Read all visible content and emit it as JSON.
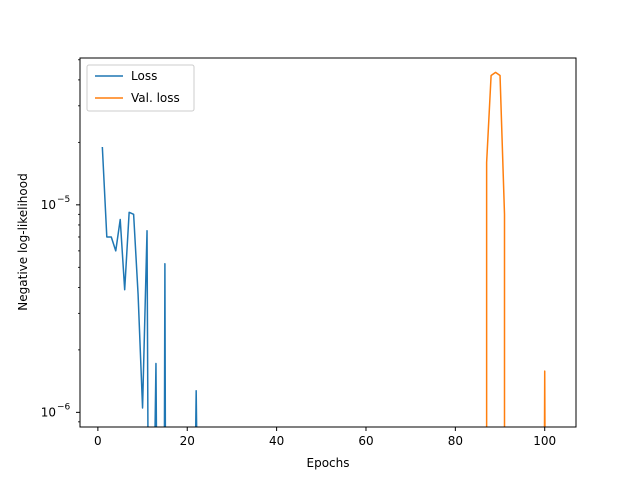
{
  "chart_data": {
    "type": "line",
    "title": "",
    "xlabel": "Epochs",
    "ylabel": "Negative log-likelihood",
    "xlim": [
      -4,
      107
    ],
    "ylim": [
      8.5e-07,
      5.1e-05
    ],
    "yscale": "log",
    "x_ticks": [
      0,
      20,
      40,
      60,
      80,
      100
    ],
    "x_tick_labels": [
      "0",
      "20",
      "40",
      "60",
      "80",
      "100"
    ],
    "y_ticks": [
      1e-06,
      1e-05
    ],
    "y_tick_labels": [
      {
        "base": "10",
        "exp": "−6"
      },
      {
        "base": "10",
        "exp": "−5"
      }
    ],
    "grid": false,
    "legend_position": "top-left",
    "series": [
      {
        "name": "Loss",
        "color": "#1f77b4",
        "segments": [
          [
            [
              1,
              1.9e-05
            ],
            [
              2,
              7e-06
            ],
            [
              3,
              7e-06
            ],
            [
              4,
              6e-06
            ],
            [
              5,
              8.5e-06
            ],
            [
              6,
              3.9e-06
            ],
            [
              7,
              9.2e-06
            ],
            [
              8,
              9e-06
            ],
            [
              9,
              3.7e-06
            ],
            [
              10,
              1.05e-06
            ],
            [
              11,
              7.5e-06
            ],
            [
              11.2,
              8.5e-07
            ]
          ],
          [
            [
              12.8,
              8.5e-07
            ],
            [
              13,
              1.72e-06
            ],
            [
              13.1,
              8.5e-07
            ]
          ],
          [
            [
              14.9,
              8.5e-07
            ],
            [
              15,
              5.2e-06
            ],
            [
              15.1,
              8.5e-07
            ]
          ],
          [
            [
              21.9,
              8.5e-07
            ],
            [
              22,
              1.27e-06
            ],
            [
              22.1,
              8.5e-07
            ]
          ]
        ]
      },
      {
        "name": "Val. loss",
        "color": "#ff7f0e",
        "segments": [
          [
            [
              87,
              8.5e-07
            ],
            [
              87,
              1.6e-05
            ],
            [
              88,
              4.2e-05
            ],
            [
              89,
              4.35e-05
            ],
            [
              90,
              4.2e-05
            ],
            [
              91,
              9e-06
            ],
            [
              91,
              8.5e-07
            ]
          ],
          [
            [
              99.95,
              8.5e-07
            ],
            [
              100,
              1.58e-06
            ],
            [
              100.05,
              8.5e-07
            ]
          ]
        ]
      }
    ]
  }
}
